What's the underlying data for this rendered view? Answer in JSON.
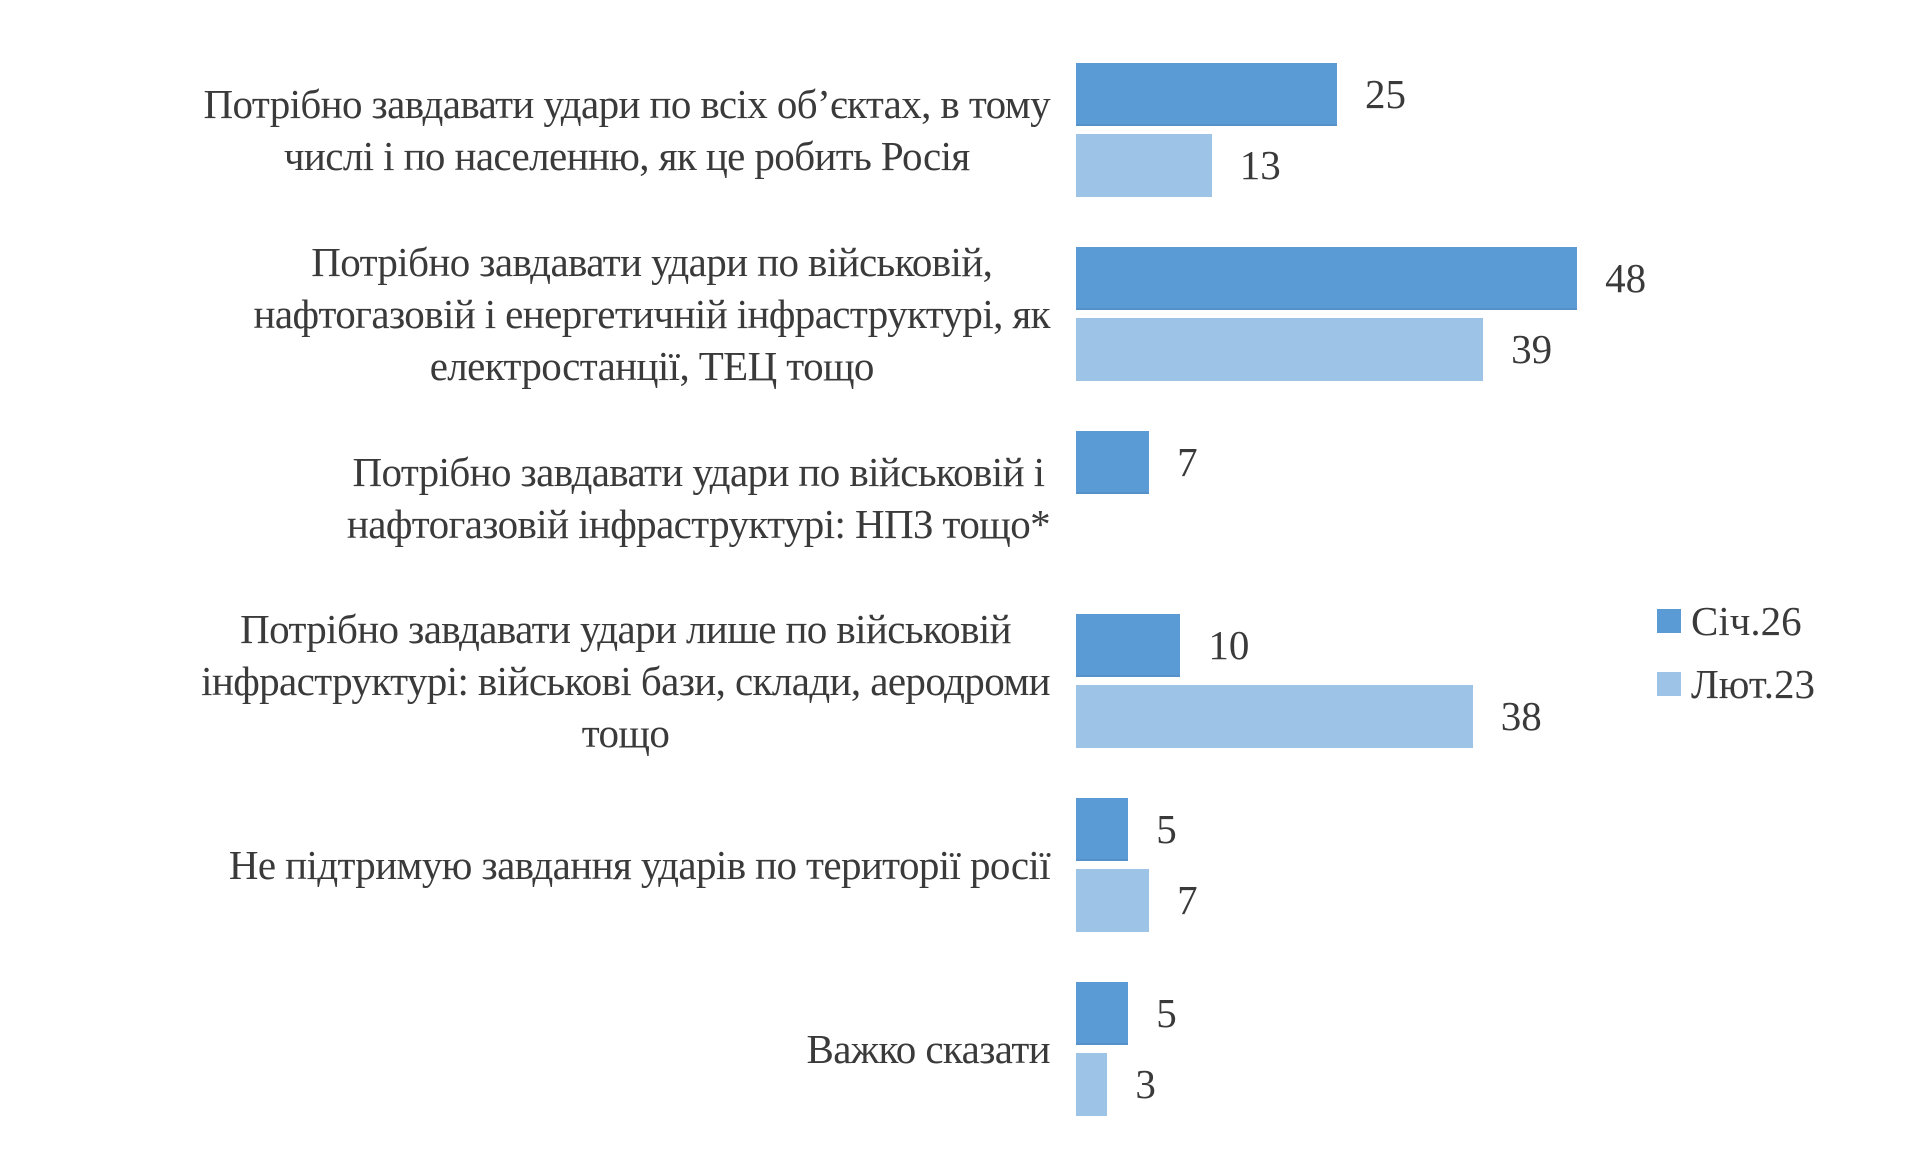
{
  "chart_data": {
    "type": "bar",
    "orientation": "horizontal",
    "title": "",
    "xlabel": "",
    "ylabel": "",
    "xlim": [
      0,
      48
    ],
    "grid": false,
    "legend_position": "right",
    "categories": [
      "Потрібно завдавати удари по всіх об’єктах, в тому числі і по населенню, як це робить Росія",
      "Потрібно завдавати удари по військовій, нафтогазовій і енергетичній інфраструктурі, як електростанції, ТЕЦ тощо",
      "Потрібно завдавати удари по військовій і нафтогазовій інфраструктурі: НПЗ тощо*",
      "Потрібно завдавати удари лише по військовій інфраструктурі: військові бази, склади, аеродроми тощо",
      "Не підтримую завдання ударів по території росії",
      "Важко сказати"
    ],
    "series": [
      {
        "name": "Січ.26",
        "color": "#5b9bd5",
        "values": [
          25,
          48,
          7,
          10,
          5,
          5
        ]
      },
      {
        "name": "Лют.23",
        "color": "#9dc3e6",
        "values": [
          13,
          39,
          null,
          38,
          7,
          3
        ]
      }
    ]
  },
  "labels": [
    [
      "Потрібно завдавати удари по всіх об’єктах, в тому",
      "числі і по населенню, як це робить Росія"
    ],
    [
      "Потрібно завдавати удари по військовій,",
      "нафтогазовій і енергетичній інфраструктурі, як",
      "електростанції, ТЕЦ тощо"
    ],
    [
      "Потрібно завдавати удари по військовій і",
      "нафтогазовій інфраструктурі: НПЗ тощо*"
    ],
    [
      "Потрібно завдавати удари лише по військовій",
      "інфраструктурі: військові бази, склади, аеродроми",
      "тощо"
    ],
    [
      "Не підтримую завдання ударів по території росії"
    ],
    [
      "Важко сказати"
    ]
  ],
  "legend": [
    {
      "label": "Січ.26",
      "color": "#5b9bd5"
    },
    {
      "label": "Лют.23",
      "color": "#9dc3e6"
    }
  ]
}
